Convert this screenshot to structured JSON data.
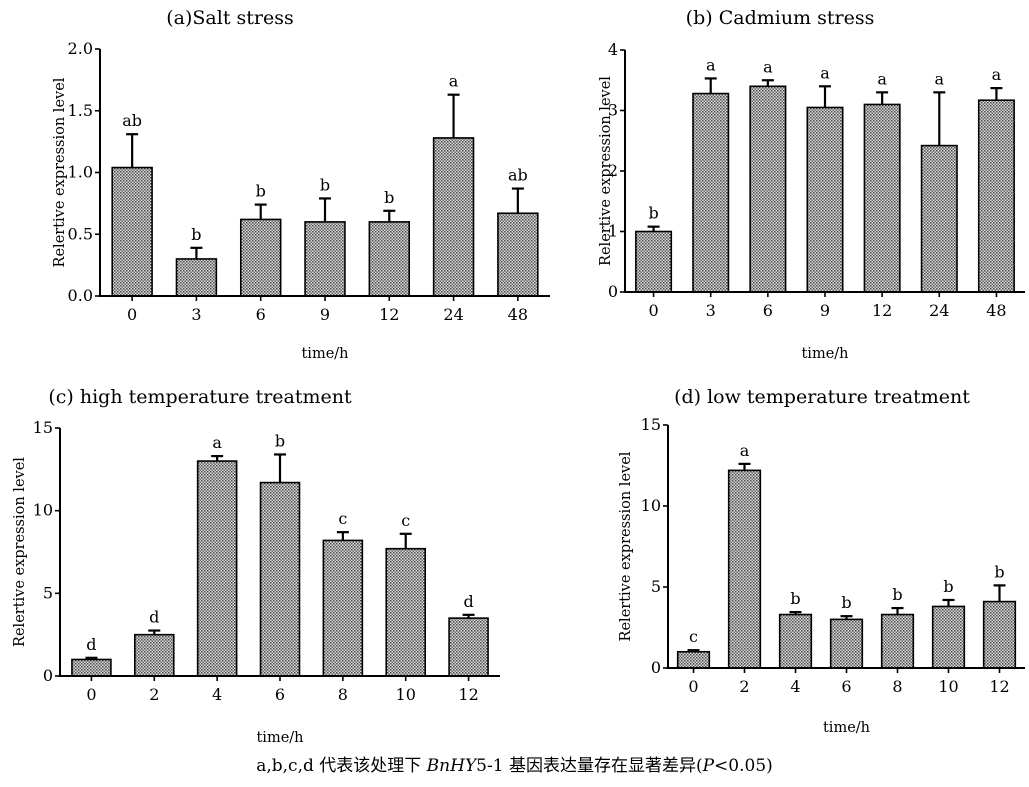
{
  "chart_data": [
    {
      "type": "bar",
      "title": "(a)Salt stress",
      "xlabel": "time/h",
      "ylabel": "Relertive expression level",
      "ylim": [
        0,
        2.0
      ],
      "yticks": [
        "0.0",
        "0.5",
        "1.0",
        "1.5",
        "2.0"
      ],
      "categories": [
        "0",
        "3",
        "6",
        "9",
        "12",
        "24",
        "48"
      ],
      "values": [
        1.04,
        0.3,
        0.62,
        0.6,
        0.6,
        1.28,
        0.67
      ],
      "errors": [
        0.27,
        0.09,
        0.12,
        0.19,
        0.09,
        0.35,
        0.2
      ],
      "letters": [
        "ab",
        "b",
        "b",
        "b",
        "b",
        "a",
        "ab"
      ]
    },
    {
      "type": "bar",
      "title": "(b) Cadmium stress",
      "xlabel": "time/h",
      "ylabel": "Relertive expression level",
      "ylim": [
        0,
        4
      ],
      "yticks": [
        "0",
        "1",
        "2",
        "3",
        "4"
      ],
      "categories": [
        "0",
        "3",
        "6",
        "9",
        "12",
        "24",
        "48"
      ],
      "values": [
        1.0,
        3.28,
        3.4,
        3.05,
        3.1,
        2.42,
        3.17
      ],
      "errors": [
        0.08,
        0.25,
        0.1,
        0.35,
        0.2,
        0.88,
        0.2
      ],
      "letters": [
        "b",
        "a",
        "a",
        "a",
        "a",
        "a",
        "a"
      ]
    },
    {
      "type": "bar",
      "title": "(c) high temperature treatment",
      "xlabel": "time/h",
      "ylabel": "Relertive expression level",
      "ylim": [
        0,
        15
      ],
      "yticks": [
        "0",
        "5",
        "10",
        "15"
      ],
      "categories": [
        "0",
        "2",
        "4",
        "6",
        "8",
        "10",
        "12"
      ],
      "values": [
        1.0,
        2.5,
        13.0,
        11.7,
        8.2,
        7.7,
        3.5
      ],
      "errors": [
        0.1,
        0.25,
        0.3,
        1.7,
        0.5,
        0.9,
        0.2
      ],
      "letters": [
        "d",
        "d",
        "a",
        "b",
        "c",
        "c",
        "d"
      ]
    },
    {
      "type": "bar",
      "title": "(d) low temperature treatment",
      "xlabel": "time/h",
      "ylabel": "Relertive expression level",
      "ylim": [
        0,
        15
      ],
      "yticks": [
        "0",
        "5",
        "10",
        "15"
      ],
      "categories": [
        "0",
        "2",
        "4",
        "6",
        "8",
        "10",
        "12"
      ],
      "values": [
        1.0,
        12.2,
        3.3,
        3.0,
        3.3,
        3.8,
        4.1
      ],
      "errors": [
        0.1,
        0.4,
        0.15,
        0.2,
        0.4,
        0.4,
        1.0
      ],
      "letters": [
        "c",
        "a",
        "b",
        "b",
        "b",
        "b",
        "b"
      ]
    }
  ],
  "caption": {
    "prefix": "a,b,c,d 代表该处理下 ",
    "gene": "BnHY",
    "gene_suffix": "5-1 基因表达量存在显著差异(",
    "p_symbol": "P",
    "p_suffix": "<0.05)"
  }
}
